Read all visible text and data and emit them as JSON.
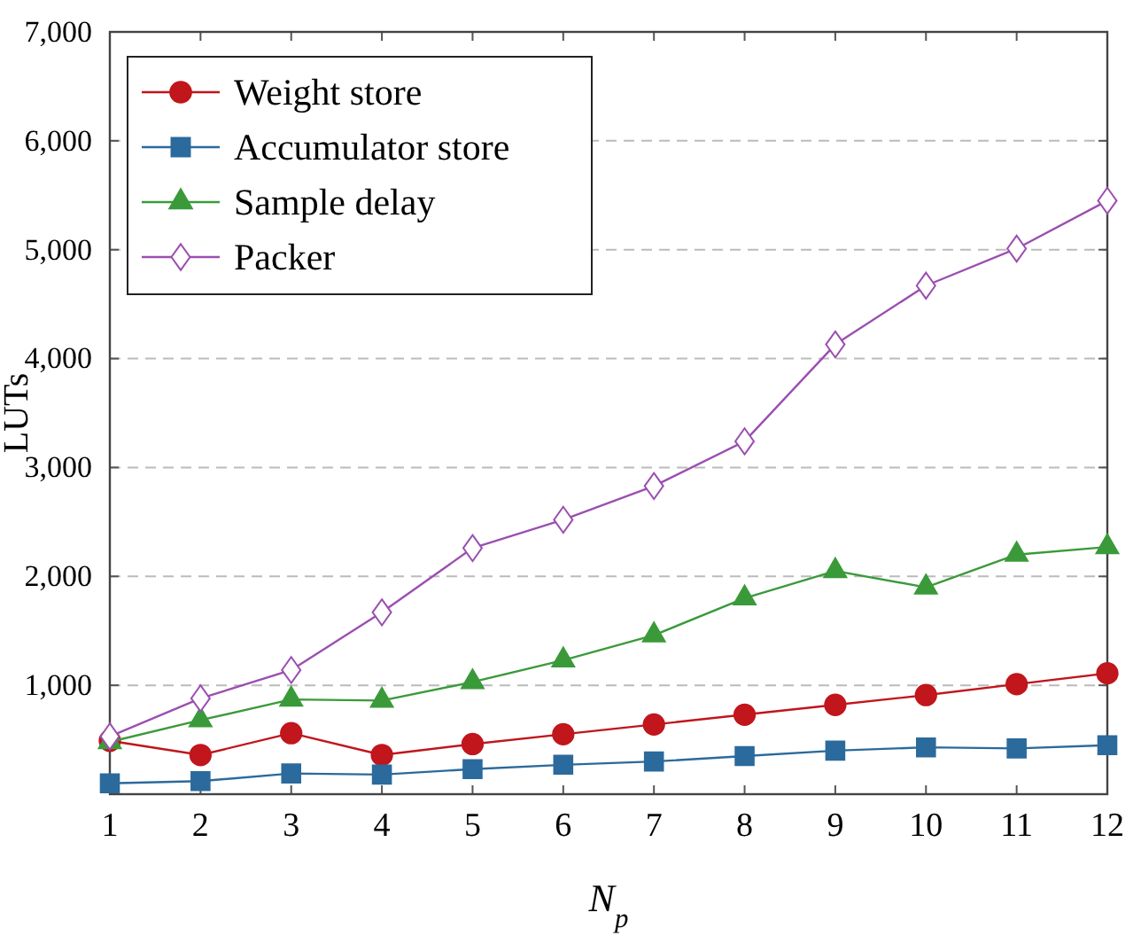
{
  "chart_data": {
    "type": "line",
    "xlabel": "N$_{p}$",
    "ylabel": "LUTs",
    "x": [
      1,
      2,
      3,
      4,
      5,
      6,
      7,
      8,
      9,
      10,
      11,
      12
    ],
    "xlim": [
      1,
      12
    ],
    "xticks": [
      1,
      2,
      3,
      4,
      5,
      6,
      7,
      8,
      9,
      10,
      11,
      12
    ],
    "ylim": [
      0,
      7000
    ],
    "yticks": [
      {
        "value": 1000,
        "label": "1,000"
      },
      {
        "value": 2000,
        "label": "2,000"
      },
      {
        "value": 3000,
        "label": "3,000"
      },
      {
        "value": 4000,
        "label": "4,000"
      },
      {
        "value": 5000,
        "label": "5,000"
      },
      {
        "value": 6000,
        "label": "6,000"
      },
      {
        "value": 7000,
        "label": "7,000"
      }
    ],
    "grid": "y",
    "legend": "top left",
    "series": [
      {
        "name": "Weight store",
        "color": "#c0161c",
        "marker": "circle",
        "values": [
          490,
          360,
          560,
          360,
          460,
          550,
          640,
          730,
          820,
          910,
          1010,
          1110
        ]
      },
      {
        "name": "Accumulator store",
        "color": "#2b6a9c",
        "marker": "square",
        "values": [
          100,
          120,
          190,
          180,
          230,
          270,
          300,
          350,
          400,
          430,
          420,
          450
        ]
      },
      {
        "name": "Sample delay",
        "color": "#3a9a3a",
        "marker": "triangle",
        "values": [
          480,
          680,
          870,
          860,
          1030,
          1230,
          1460,
          1800,
          2050,
          1900,
          2200,
          2270
        ]
      },
      {
        "name": "Packer",
        "color": "#9b4fb0",
        "marker": "diamond",
        "values": [
          530,
          880,
          1140,
          1670,
          2260,
          2520,
          2830,
          3240,
          4130,
          4670,
          5010,
          5450
        ]
      }
    ]
  }
}
